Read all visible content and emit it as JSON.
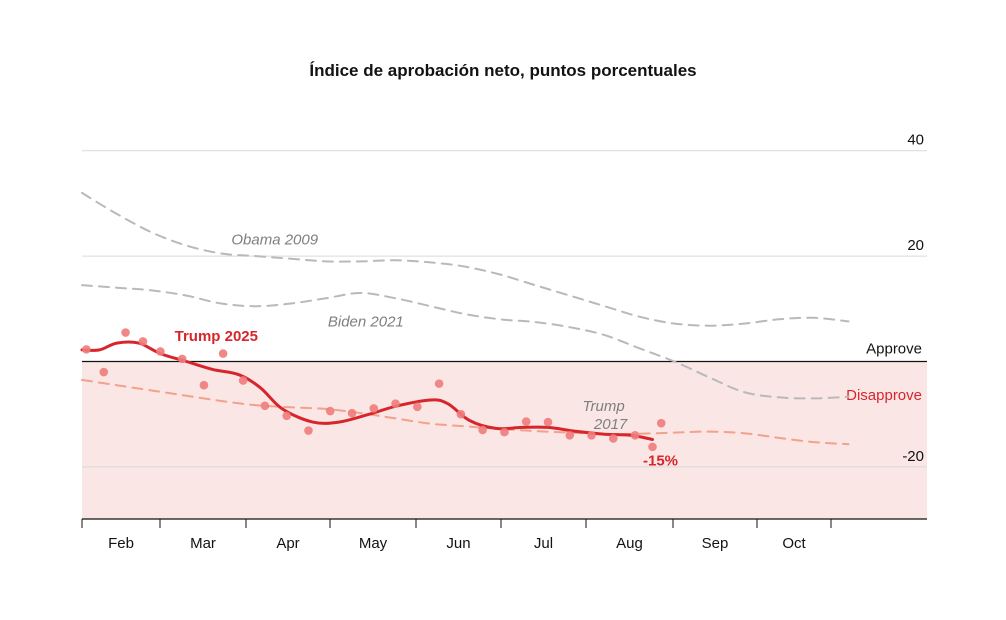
{
  "chart_data": {
    "type": "line",
    "title": "Índice de aprobación neto, puntos porcentuales",
    "xlabel": "",
    "ylabel": "",
    "x_domain_months": [
      0,
      9.3
    ],
    "ylim": [
      -30,
      42
    ],
    "yticks": [
      {
        "value": 40,
        "label": "40"
      },
      {
        "value": 20,
        "label": "20"
      },
      {
        "value": -20,
        "label": "-20"
      }
    ],
    "xticks": [
      "Feb",
      "Mar",
      "Apr",
      "May",
      "Jun",
      "Jul",
      "Aug",
      "Sep",
      "Oct"
    ],
    "zero_labels": {
      "above": "Approve",
      "below": "Disapprove"
    },
    "grid": true,
    "series": [
      {
        "name": "Obama 2009",
        "style": "dashed",
        "color": "#b9b9b9",
        "points": [
          [
            0,
            32
          ],
          [
            0.4,
            28
          ],
          [
            0.8,
            24.5
          ],
          [
            1.2,
            22
          ],
          [
            1.6,
            20.5
          ],
          [
            2.0,
            20
          ],
          [
            2.4,
            19.5
          ],
          [
            2.8,
            19
          ],
          [
            3.2,
            19
          ],
          [
            3.6,
            19.2
          ],
          [
            4.0,
            18.8
          ],
          [
            4.4,
            18
          ],
          [
            4.8,
            16.5
          ],
          [
            5.2,
            14.5
          ],
          [
            5.6,
            12.5
          ],
          [
            6.0,
            10.5
          ],
          [
            6.4,
            8.5
          ],
          [
            6.8,
            7.2
          ],
          [
            7.2,
            6.8
          ],
          [
            7.6,
            7.2
          ],
          [
            8.0,
            8
          ],
          [
            8.4,
            8.3
          ],
          [
            8.8,
            7.6
          ]
        ]
      },
      {
        "name": "Biden 2021",
        "style": "dashed",
        "color": "#b9b9b9",
        "points": [
          [
            0,
            14.5
          ],
          [
            0.4,
            14
          ],
          [
            0.8,
            13.5
          ],
          [
            1.2,
            12.5
          ],
          [
            1.6,
            11
          ],
          [
            2.0,
            10.5
          ],
          [
            2.4,
            11
          ],
          [
            2.8,
            12
          ],
          [
            3.2,
            13
          ],
          [
            3.6,
            12
          ],
          [
            4.0,
            10.5
          ],
          [
            4.4,
            9
          ],
          [
            4.8,
            8
          ],
          [
            5.2,
            7.5
          ],
          [
            5.6,
            6.5
          ],
          [
            6.0,
            5
          ],
          [
            6.4,
            2.5
          ],
          [
            6.8,
            0
          ],
          [
            7.2,
            -3
          ],
          [
            7.6,
            -5.8
          ],
          [
            8.0,
            -6.8
          ],
          [
            8.4,
            -7
          ],
          [
            8.8,
            -6.7
          ]
        ]
      },
      {
        "name": "Trump 2017",
        "style": "dashed",
        "color": "#f2a18c",
        "points": [
          [
            0,
            -3.5
          ],
          [
            0.4,
            -4.5
          ],
          [
            0.8,
            -5.5
          ],
          [
            1.2,
            -6.5
          ],
          [
            1.6,
            -7.5
          ],
          [
            2.0,
            -8.3
          ],
          [
            2.4,
            -8.7
          ],
          [
            2.8,
            -9
          ],
          [
            3.2,
            -9.8
          ],
          [
            3.6,
            -10.8
          ],
          [
            4.0,
            -11.8
          ],
          [
            4.4,
            -12.3
          ],
          [
            4.8,
            -12.8
          ],
          [
            5.2,
            -13.2
          ],
          [
            5.6,
            -13.5
          ],
          [
            6.0,
            -13.8
          ],
          [
            6.4,
            -13.7
          ],
          [
            6.8,
            -13.5
          ],
          [
            7.2,
            -13.3
          ],
          [
            7.6,
            -13.6
          ],
          [
            8.0,
            -14.5
          ],
          [
            8.4,
            -15.3
          ],
          [
            8.8,
            -15.7
          ]
        ]
      },
      {
        "name": "Trump 2025",
        "style": "solid",
        "color": "#d7262b",
        "points": [
          [
            0,
            2.2
          ],
          [
            0.2,
            2.2
          ],
          [
            0.4,
            3.5
          ],
          [
            0.65,
            3.5
          ],
          [
            0.9,
            1.5
          ],
          [
            1.2,
            0
          ],
          [
            1.5,
            -1.5
          ],
          [
            1.8,
            -2.5
          ],
          [
            2.05,
            -5
          ],
          [
            2.3,
            -9
          ],
          [
            2.65,
            -11.5
          ],
          [
            2.95,
            -11.5
          ],
          [
            3.3,
            -10
          ],
          [
            3.6,
            -8.5
          ],
          [
            4.0,
            -7.3
          ],
          [
            4.2,
            -8
          ],
          [
            4.45,
            -11.2
          ],
          [
            4.75,
            -12.7
          ],
          [
            5.05,
            -12.5
          ],
          [
            5.35,
            -12.5
          ],
          [
            5.65,
            -13.2
          ],
          [
            6.0,
            -13.8
          ],
          [
            6.3,
            -14
          ],
          [
            6.55,
            -14.8
          ]
        ],
        "dots": [
          [
            0.05,
            2.3
          ],
          [
            0.25,
            -2
          ],
          [
            0.5,
            5.5
          ],
          [
            0.7,
            3.8
          ],
          [
            0.9,
            1.9
          ],
          [
            1.15,
            0.5
          ],
          [
            1.4,
            -4.5
          ],
          [
            1.62,
            1.5
          ],
          [
            1.85,
            -3.6
          ],
          [
            2.1,
            -8.4
          ],
          [
            2.35,
            -10.3
          ],
          [
            2.6,
            -13.1
          ],
          [
            2.85,
            -9.4
          ],
          [
            3.1,
            -9.8
          ],
          [
            3.35,
            -8.9
          ],
          [
            3.6,
            -8
          ],
          [
            3.85,
            -8.6
          ],
          [
            4.1,
            -4.2
          ],
          [
            4.35,
            -10
          ],
          [
            4.6,
            -13
          ],
          [
            4.85,
            -13.4
          ],
          [
            5.1,
            -11.4
          ],
          [
            5.35,
            -11.5
          ],
          [
            5.6,
            -14
          ],
          [
            5.85,
            -14
          ],
          [
            6.1,
            -14.6
          ],
          [
            6.35,
            -14
          ],
          [
            6.65,
            -11.7
          ],
          [
            6.55,
            -16.2
          ]
        ],
        "end_label": "-15%"
      }
    ],
    "annotations": [
      {
        "text": "Obama 2009",
        "series": "Obama 2009"
      },
      {
        "text": "Biden 2021",
        "series": "Biden 2021"
      },
      {
        "text": "Trump",
        "series": "Trump 2017"
      },
      {
        "text": "2017",
        "series": "Trump 2017"
      },
      {
        "text": "Trump 2025",
        "series": "Trump 2025"
      }
    ]
  }
}
